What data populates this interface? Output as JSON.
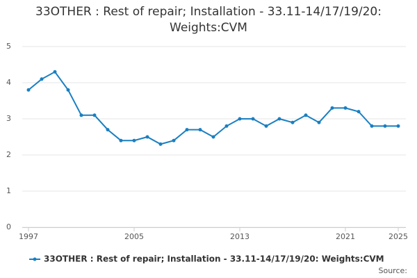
{
  "chart_data": {
    "type": "line",
    "title": "33OTHER : Rest of repair; Installation - 33.11-14/17/19/20: Weights:CVM",
    "x": [
      1997,
      1998,
      1999,
      2000,
      2001,
      2002,
      2003,
      2004,
      2005,
      2006,
      2007,
      2008,
      2009,
      2010,
      2011,
      2012,
      2013,
      2014,
      2015,
      2016,
      2017,
      2018,
      2019,
      2020,
      2021,
      2022,
      2023,
      2024,
      2025
    ],
    "series": [
      {
        "name": "33OTHER : Rest of repair; Installation - 33.11-14/17/19/20: Weights:CVM",
        "color": "#1a7fc1",
        "values": [
          3.8,
          4.1,
          4.3,
          3.8,
          3.1,
          3.1,
          2.7,
          2.4,
          2.4,
          2.5,
          2.3,
          2.4,
          2.7,
          2.7,
          2.5,
          2.8,
          3.0,
          3.0,
          2.8,
          3.0,
          2.9,
          3.1,
          2.9,
          3.3,
          3.3,
          3.2,
          2.8,
          2.8,
          2.8
        ]
      }
    ],
    "xlim": [
      1997,
      2025
    ],
    "xticks": [
      1997,
      2005,
      2013,
      2021,
      2025
    ],
    "ylim": [
      0,
      5
    ],
    "yticks": [
      0,
      1,
      2,
      3,
      4,
      5
    ],
    "grid": true,
    "source": "Source:"
  }
}
